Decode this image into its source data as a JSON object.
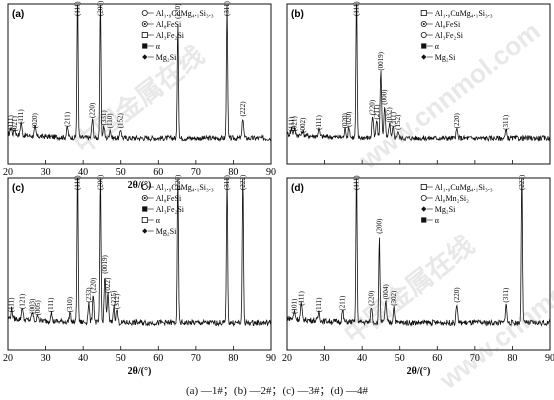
{
  "caption": "(a) —1#；(b) —2#；(c) —3#；(d) —4#",
  "watermarks": [
    "中国金属在线",
    "www.cnnmol.com"
  ],
  "chart_data": [
    {
      "type": "line",
      "panel": "(a)",
      "xlabel": "2θ/(°)",
      "xlim": [
        20,
        90
      ],
      "xticks": [
        20,
        30,
        40,
        50,
        60,
        70,
        80,
        90
      ],
      "show_xticklabels": true,
      "baseline": 0.12,
      "legend": [
        {
          "marker": "circle-open",
          "label": "Al₁.₉CuMg₄.₁Si₃.₃"
        },
        {
          "marker": "circle-dot",
          "label": "Al₈FeSi"
        },
        {
          "marker": "square-open",
          "label": "Al₃Fe₂Si"
        },
        {
          "marker": "square-solid",
          "label": "α"
        },
        {
          "marker": "diamond",
          "label": "Mg₂Si"
        }
      ],
      "peaks": [
        {
          "x": 20.8,
          "h": 0.05,
          "label": "(111)"
        },
        {
          "x": 21.8,
          "h": 0.04,
          "label": "(021)"
        },
        {
          "x": 23.5,
          "h": 0.09,
          "label": "(111)"
        },
        {
          "x": 27.2,
          "h": 0.06,
          "label": "(020)"
        },
        {
          "x": 35.8,
          "h": 0.07,
          "label": "(211)"
        },
        {
          "x": 38.5,
          "h": 1.0,
          "label": "(111)"
        },
        {
          "x": 42.5,
          "h": 0.13,
          "label": "(220)"
        },
        {
          "x": 44.6,
          "h": 0.95,
          "label": "(200)"
        },
        {
          "x": 45.5,
          "h": 0.08,
          "label": "(331)"
        },
        {
          "x": 47.2,
          "h": 0.06,
          "label": "(110)"
        },
        {
          "x": 50.0,
          "h": 0.06,
          "label": "(152)"
        },
        {
          "x": 65.2,
          "h": 0.8,
          "label": "(220)"
        },
        {
          "x": 78.3,
          "h": 0.95,
          "label": "(311)"
        },
        {
          "x": 82.5,
          "h": 0.14,
          "label": "(222)"
        }
      ]
    },
    {
      "type": "line",
      "panel": "(b)",
      "xlabel": "",
      "xlim": [
        20,
        90
      ],
      "xticks": [
        20,
        30,
        40,
        50,
        60,
        70,
        80,
        90
      ],
      "show_xticklabels": false,
      "baseline": 0.12,
      "legend": [
        {
          "marker": "square-open",
          "label": "Al₁.₉CuMg₄.₁Si₃.₃"
        },
        {
          "marker": "circle-dot",
          "label": "Al₈FeSi"
        },
        {
          "marker": "circle-open",
          "label": "Al₃Fe₂Si"
        },
        {
          "marker": "square-solid",
          "label": "α"
        },
        {
          "marker": "diamond",
          "label": "Mg₂Si"
        }
      ],
      "peaks": [
        {
          "x": 21.2,
          "h": 0.04,
          "label": "(111)"
        },
        {
          "x": 22.0,
          "h": 0.04,
          "label": "(021)"
        },
        {
          "x": 24.2,
          "h": 0.03,
          "label": "(002)"
        },
        {
          "x": 28.5,
          "h": 0.05,
          "label": "(111)"
        },
        {
          "x": 35.5,
          "h": 0.06,
          "label": "(020)"
        },
        {
          "x": 36.5,
          "h": 0.07,
          "label": "(020)"
        },
        {
          "x": 38.5,
          "h": 1.0,
          "label": "(111)"
        },
        {
          "x": 42.8,
          "h": 0.15,
          "label": "(220)"
        },
        {
          "x": 43.9,
          "h": 0.12,
          "label": "(211)"
        },
        {
          "x": 45.0,
          "h": 0.45,
          "label": "(0019)"
        },
        {
          "x": 46.0,
          "h": 0.22,
          "label": "(000)"
        },
        {
          "x": 47.3,
          "h": 0.1,
          "label": "(032)"
        },
        {
          "x": 48.3,
          "h": 0.07,
          "label": "(311)"
        },
        {
          "x": 49.5,
          "h": 0.05,
          "label": "(152)"
        },
        {
          "x": 65.2,
          "h": 0.06,
          "label": "(220)"
        },
        {
          "x": 78.3,
          "h": 0.05,
          "label": "(311)"
        }
      ]
    },
    {
      "type": "line",
      "panel": "(c)",
      "xlabel": "2θ/(°)",
      "xlim": [
        20,
        90
      ],
      "xticks": [
        20,
        30,
        40,
        50,
        60,
        70,
        80,
        90
      ],
      "show_xticklabels": true,
      "baseline": 0.12,
      "legend": [
        {
          "marker": "circle-open",
          "label": "Al₁.₉CuMg₄.₁Si₃.₃"
        },
        {
          "marker": "circle-dot",
          "label": "Al₈FeSi"
        },
        {
          "marker": "square-solid",
          "label": "Al₃Fe₂Si"
        },
        {
          "marker": "square-open",
          "label": "α"
        },
        {
          "marker": "diamond",
          "label": "Mg₂Si"
        }
      ],
      "peaks": [
        {
          "x": 21.0,
          "h": 0.06,
          "label": "(111)"
        },
        {
          "x": 23.8,
          "h": 0.08,
          "label": "(121)"
        },
        {
          "x": 26.5,
          "h": 0.05,
          "label": "(003)"
        },
        {
          "x": 28.0,
          "h": 0.04,
          "label": "(005)"
        },
        {
          "x": 31.5,
          "h": 0.06,
          "label": "(111)"
        },
        {
          "x": 36.5,
          "h": 0.06,
          "label": "(310)"
        },
        {
          "x": 38.5,
          "h": 1.0,
          "label": "(111)"
        },
        {
          "x": 41.5,
          "h": 0.12,
          "label": "(233)"
        },
        {
          "x": 42.7,
          "h": 0.18,
          "label": "(220)"
        },
        {
          "x": 44.6,
          "h": 0.95,
          "label": "(200)"
        },
        {
          "x": 45.8,
          "h": 0.3,
          "label": "(0019)"
        },
        {
          "x": 46.6,
          "h": 0.18,
          "label": "(022)"
        },
        {
          "x": 48.2,
          "h": 0.1,
          "label": "(225)"
        },
        {
          "x": 49.0,
          "h": 0.08,
          "label": "(312)"
        },
        {
          "x": 65.2,
          "h": 0.95,
          "label": "(220)"
        },
        {
          "x": 78.3,
          "h": 0.95,
          "label": "(311)"
        },
        {
          "x": 82.5,
          "h": 0.95,
          "label": "(222)"
        }
      ]
    },
    {
      "type": "line",
      "panel": "(d)",
      "xlabel": "2θ/(°)",
      "xlim": [
        20,
        90
      ],
      "xticks": [
        20,
        30,
        40,
        50,
        60,
        70,
        80,
        90
      ],
      "show_xticklabels": true,
      "baseline": 0.12,
      "legend": [
        {
          "marker": "square-open",
          "label": "Al₁.₉CuMg₄.₁Si₃.₃"
        },
        {
          "marker": "circle-open",
          "label": "Al₈Mn₂Si₂"
        },
        {
          "marker": "diamond",
          "label": "Mg₂Si"
        },
        {
          "marker": "square-solid",
          "label": "α"
        }
      ],
      "peaks": [
        {
          "x": 22.0,
          "h": 0.05,
          "label": "(101)"
        },
        {
          "x": 23.8,
          "h": 0.1,
          "label": "(111)"
        },
        {
          "x": 28.5,
          "h": 0.06,
          "label": "(111)"
        },
        {
          "x": 34.8,
          "h": 0.07,
          "label": "(211)"
        },
        {
          "x": 38.5,
          "h": 0.98,
          "label": "(111)"
        },
        {
          "x": 42.5,
          "h": 0.1,
          "label": "(220)"
        },
        {
          "x": 44.6,
          "h": 0.55,
          "label": "(200)"
        },
        {
          "x": 46.3,
          "h": 0.14,
          "label": "(004)"
        },
        {
          "x": 48.5,
          "h": 0.1,
          "label": "(302)"
        },
        {
          "x": 65.2,
          "h": 0.12,
          "label": "(220)"
        },
        {
          "x": 78.3,
          "h": 0.12,
          "label": "(311)"
        },
        {
          "x": 82.5,
          "h": 1.0,
          "label": "(222)"
        }
      ]
    }
  ]
}
